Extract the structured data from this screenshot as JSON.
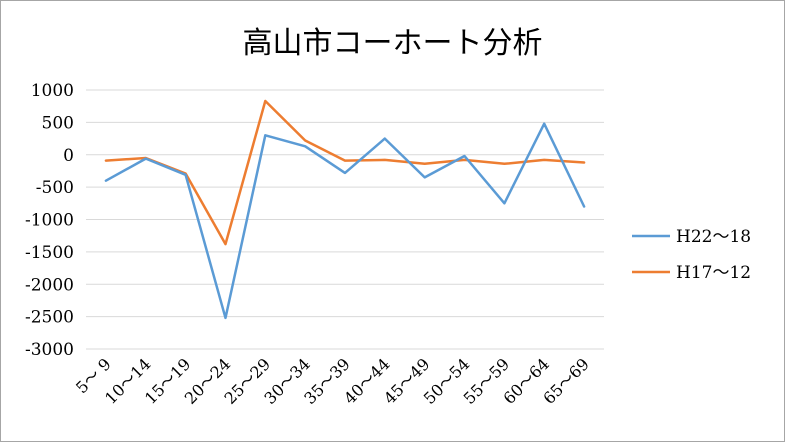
{
  "chart_data": {
    "type": "line",
    "title": "高山市コーホート分析",
    "categories": [
      "5～ 9",
      "10～14",
      "15～19",
      "20～24",
      "25～29",
      "30～34",
      "35～39",
      "40～44",
      "45～49",
      "50～54",
      "55～59",
      "60～64",
      "65～69"
    ],
    "ylim": [
      -3000,
      1000
    ],
    "yticks": [
      1000,
      500,
      0,
      -500,
      -1000,
      -1500,
      -2000,
      -2500,
      -3000
    ],
    "grid": true,
    "legend": "right",
    "series": [
      {
        "name": "H22～18",
        "color": "#5b9bd5",
        "values": [
          -400,
          -60,
          -310,
          -2520,
          300,
          130,
          -280,
          250,
          -350,
          -20,
          -750,
          480,
          -800
        ]
      },
      {
        "name": "H17～12",
        "color": "#ed7d31",
        "values": [
          -90,
          -50,
          -290,
          -1380,
          830,
          220,
          -90,
          -80,
          -140,
          -80,
          -140,
          -80,
          -120
        ]
      }
    ]
  }
}
